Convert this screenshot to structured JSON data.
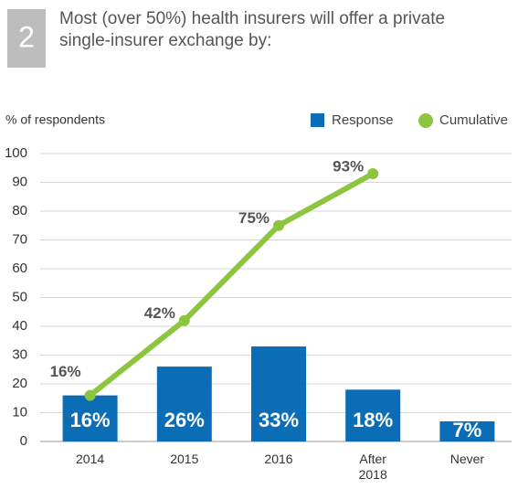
{
  "chart_data": {
    "type": "bar_line",
    "badge": "2",
    "title": [
      "Most (over 50%) health insurers will offer a private",
      "single-insurer exchange by:"
    ],
    "y_axis_label": "% of respondents",
    "categories": [
      "2014",
      "2015",
      "2016",
      "After 2018",
      "Never"
    ],
    "series": [
      {
        "name": "Response",
        "type": "bar",
        "color": "#0b6db5",
        "values": [
          16,
          26,
          33,
          18,
          7
        ],
        "value_labels": [
          "16%",
          "26%",
          "33%",
          "18%",
          "7%"
        ]
      },
      {
        "name": "Cumulative",
        "type": "line",
        "color": "#8cc63e",
        "values": [
          16,
          42,
          75,
          93,
          null
        ],
        "value_labels": [
          "16%",
          "42%",
          "75%",
          "93%",
          null
        ]
      }
    ],
    "ylim": [
      0,
      100
    ],
    "yticks": [
      0,
      10,
      20,
      30,
      40,
      50,
      60,
      70,
      80,
      90,
      100
    ],
    "grid": true,
    "legend": "top-right"
  }
}
